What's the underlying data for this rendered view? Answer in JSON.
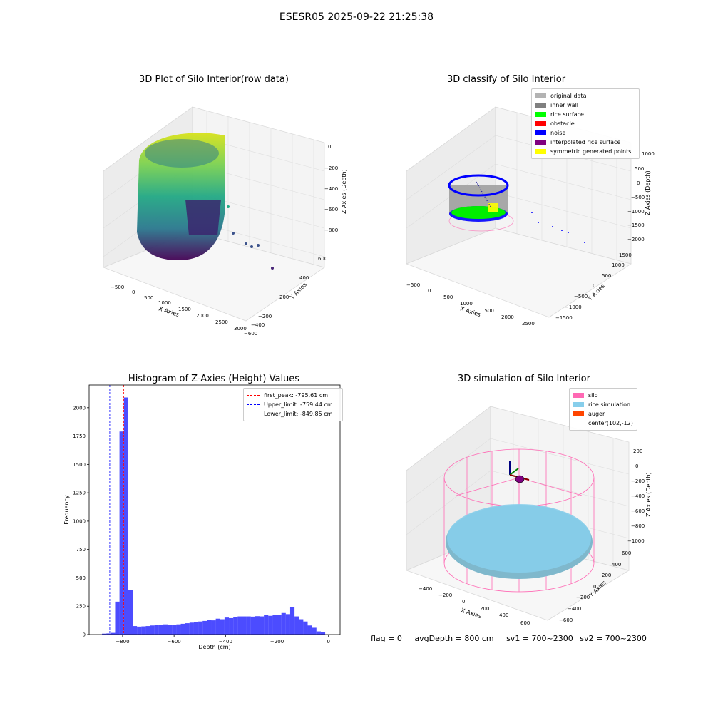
{
  "suptitle": "ESESR05 2025-09-22 21:25:38",
  "panels": {
    "raw": {
      "title": "3D Plot of Silo Interior(row data)",
      "xlabel": "X Axies",
      "ylabel": "Y Axies",
      "zlabel": "Z Axies (Depth)",
      "xticks": [
        "−500",
        "0",
        "500",
        "1000",
        "1500",
        "2000",
        "2500",
        "3000"
      ],
      "yticks": [
        "600",
        "400",
        "200",
        "−200",
        "−400",
        "−600"
      ],
      "zticks": [
        "0",
        "−200",
        "−400",
        "−600",
        "−800"
      ]
    },
    "classify": {
      "title": "3D classify of Silo Interior",
      "xlabel": "X Axies",
      "ylabel": "Y Axies",
      "zlabel": "Z Axies (Depth)",
      "xticks": [
        "−500",
        "0",
        "500",
        "1000",
        "1500",
        "2000",
        "2500"
      ],
      "yticks": [
        "1500",
        "1000",
        "500",
        "0",
        "−500",
        "−1000",
        "−1500"
      ],
      "zticks": [
        "1000",
        "500",
        "0",
        "−500",
        "−1000",
        "−1500",
        "−2000"
      ],
      "legend": [
        {
          "label": "original data",
          "color": "#b3b3b3"
        },
        {
          "label": "inner wall",
          "color": "#808080"
        },
        {
          "label": "rice surface",
          "color": "#00ff00"
        },
        {
          "label": "obstacle",
          "color": "#ff0000"
        },
        {
          "label": "noise",
          "color": "#0000ff"
        },
        {
          "label": "interpolated rice surface",
          "color": "#800080"
        },
        {
          "label": "symmetric generated points",
          "color": "#ffff00"
        }
      ]
    },
    "simulation": {
      "title": "3D simulation of Silo Interior",
      "xlabel": "X Axies",
      "ylabel": "Y Axies",
      "zlabel": "Z Axies (Depth)",
      "xticks": [
        "−400",
        "−200",
        "0",
        "200",
        "400",
        "600"
      ],
      "yticks": [
        "600",
        "400",
        "200",
        "0",
        "−200",
        "−400",
        "−600"
      ],
      "zticks": [
        "200",
        "0",
        "−200",
        "−400",
        "−600",
        "−800",
        "−1000"
      ],
      "legend": [
        {
          "label": "silo",
          "color": "#ff69b4"
        },
        {
          "label": "rice simulation",
          "color": "#87ceeb"
        },
        {
          "label": "auger",
          "color": "#ff4500"
        },
        {
          "label": "center(102,-12)",
          "color": ""
        }
      ]
    }
  },
  "chart_data": {
    "type": "bar",
    "title": "Histogram of Z-Axies (Height) Values",
    "xlabel": "Depth (cm)",
    "ylabel": "Frequency",
    "xlim": [
      -930,
      45
    ],
    "ylim": [
      0,
      2200
    ],
    "xticks": [
      -800,
      -600,
      -400,
      -200,
      0
    ],
    "yticks": [
      0,
      250,
      500,
      750,
      1000,
      1250,
      1500,
      1750,
      2000
    ],
    "bin_width": 17,
    "bin_start": -880,
    "values": [
      8,
      10,
      15,
      290,
      1790,
      2090,
      390,
      75,
      70,
      72,
      75,
      80,
      85,
      82,
      90,
      85,
      88,
      90,
      95,
      100,
      105,
      110,
      115,
      120,
      130,
      125,
      140,
      135,
      150,
      145,
      155,
      160,
      160,
      160,
      158,
      162,
      160,
      170,
      165,
      170,
      175,
      190,
      180,
      240,
      160,
      135,
      115,
      80,
      60,
      28,
      25
    ],
    "color": "#0000ff",
    "vlines": [
      {
        "label": "first_peak: -795.61 cm",
        "x": -795.61,
        "color": "#ff0000"
      },
      {
        "label": "Upper_limit: -759.44 cm",
        "x": -759.44,
        "color": "#0000ff"
      },
      {
        "label": "Lower_limit: -849.85 cm",
        "x": -849.85,
        "color": "#0000ff"
      }
    ],
    "legend_position": "top-right"
  },
  "status": {
    "flag": "flag = 0",
    "avg_depth": "avgDepth = 800 cm",
    "sv1": "sv1 = 700~2300",
    "sv2": "sv2 = 700~2300"
  }
}
